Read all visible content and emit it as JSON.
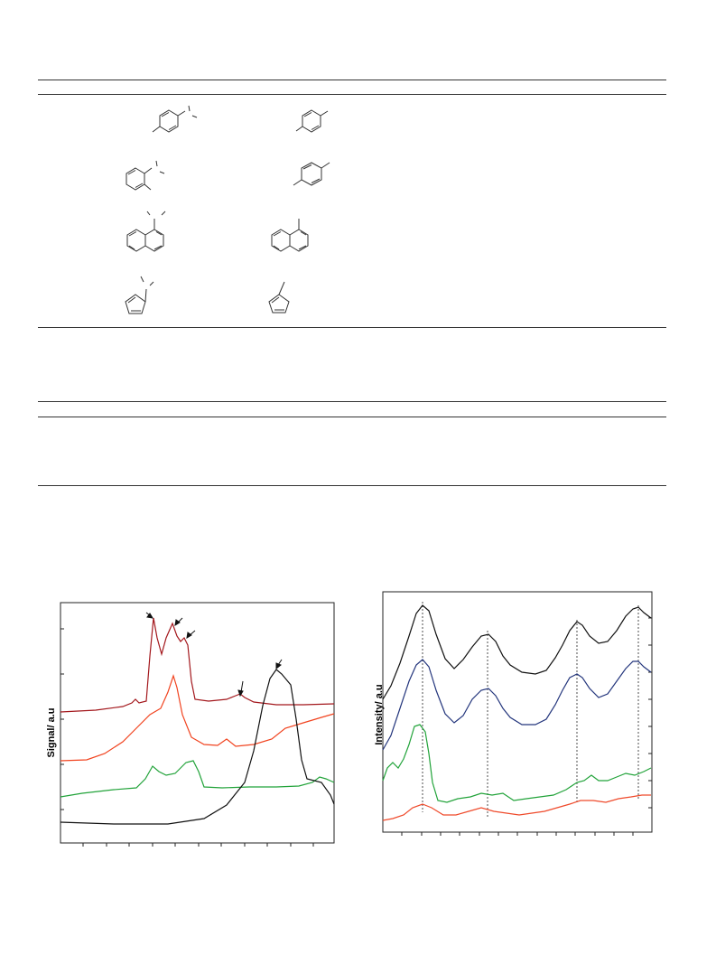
{
  "table1": {
    "rules": 3
  },
  "table2": {
    "rules": 3
  },
  "figure_left": {
    "ylabel": "Signal/ a.u",
    "colors": {
      "dark_red": "#a3171c",
      "orange": "#f1431f",
      "green": "#22a33a",
      "black": "#111111"
    }
  },
  "figure_right": {
    "ylabel": "Intensity/ a.u",
    "colors": {
      "black": "#111111",
      "blue": "#23357c",
      "green": "#22a33a",
      "red": "#ef4a2b"
    }
  }
}
